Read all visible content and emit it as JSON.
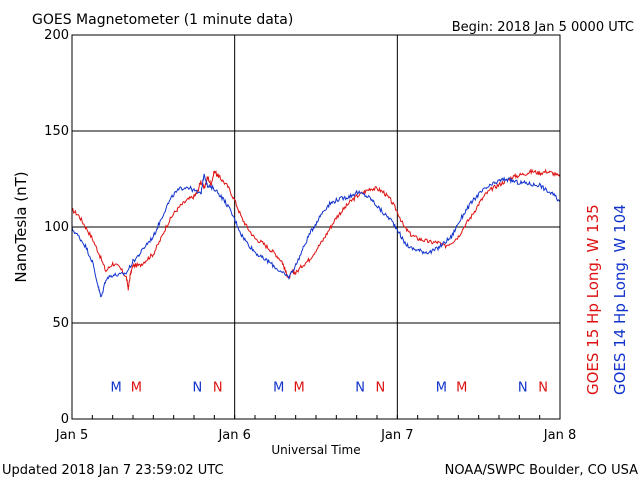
{
  "chart_data": {
    "type": "line",
    "title": "GOES Magnetometer (1 minute data)",
    "begin_label": "Begin:  2018 Jan 5 0000 UTC",
    "xlabel": "Universal Time",
    "ylabel": "NanoTesla (nT)",
    "updated_label": "Updated 2018 Jan  7 23:59:02 UTC",
    "source_label": "NOAA/SWPC Boulder, CO USA",
    "x_unit": "hours since 2018 Jan 5 0000 UTC",
    "xlim": [
      0,
      72
    ],
    "ylim": [
      0,
      200
    ],
    "y_ticks": [
      0,
      50,
      100,
      150,
      200
    ],
    "x_ticks": [
      {
        "value": 0,
        "label": "Jan 5"
      },
      {
        "value": 24,
        "label": "Jan 6"
      },
      {
        "value": 48,
        "label": "Jan 7"
      },
      {
        "value": 72,
        "label": "Jan 8"
      }
    ],
    "grid": true,
    "series": [
      {
        "name": "GOES 15 Hp  Long. W 135",
        "color": "#dd1111",
        "points": [
          [
            0,
            109
          ],
          [
            1,
            106
          ],
          [
            2,
            100
          ],
          [
            3,
            94
          ],
          [
            4,
            86
          ],
          [
            5,
            77
          ],
          [
            6,
            81
          ],
          [
            7,
            79
          ],
          [
            8,
            74
          ],
          [
            8.3,
            68
          ],
          [
            8.6,
            75
          ],
          [
            9,
            80
          ],
          [
            10,
            80
          ],
          [
            11,
            83
          ],
          [
            12,
            86
          ],
          [
            13,
            93
          ],
          [
            14,
            101
          ],
          [
            15,
            107
          ],
          [
            16,
            111
          ],
          [
            17,
            114
          ],
          [
            18,
            116
          ],
          [
            18.5,
            118
          ],
          [
            19,
            124
          ],
          [
            19.5,
            120
          ],
          [
            20,
            126
          ],
          [
            20.5,
            122
          ],
          [
            21,
            129
          ],
          [
            21.5,
            127
          ],
          [
            22,
            125
          ],
          [
            23,
            121
          ],
          [
            24,
            114
          ],
          [
            25,
            105
          ],
          [
            26,
            99
          ],
          [
            27,
            94
          ],
          [
            28,
            92
          ],
          [
            29,
            89
          ],
          [
            30,
            86
          ],
          [
            31,
            82
          ],
          [
            31.5,
            77
          ],
          [
            32,
            73
          ],
          [
            32.5,
            77
          ],
          [
            33,
            76
          ],
          [
            34,
            80
          ],
          [
            35,
            83
          ],
          [
            36,
            88
          ],
          [
            37,
            93
          ],
          [
            38,
            99
          ],
          [
            39,
            105
          ],
          [
            40,
            109
          ],
          [
            41,
            113
          ],
          [
            42,
            116
          ],
          [
            43,
            118
          ],
          [
            44,
            120
          ],
          [
            45,
            120
          ],
          [
            46,
            118
          ],
          [
            47,
            114
          ],
          [
            48,
            108
          ],
          [
            49,
            100
          ],
          [
            50,
            96
          ],
          [
            51,
            94
          ],
          [
            52,
            93
          ],
          [
            53,
            92
          ],
          [
            54,
            92
          ],
          [
            55,
            90
          ],
          [
            56,
            92
          ],
          [
            57,
            95
          ],
          [
            58,
            101
          ],
          [
            59,
            106
          ],
          [
            60,
            112
          ],
          [
            61,
            117
          ],
          [
            62,
            120
          ],
          [
            63,
            122
          ],
          [
            64,
            124
          ],
          [
            65,
            126
          ],
          [
            66,
            127
          ],
          [
            67,
            128
          ],
          [
            68,
            129
          ],
          [
            69,
            128
          ],
          [
            70,
            129
          ],
          [
            71,
            128
          ],
          [
            72,
            126
          ]
        ]
      },
      {
        "name": "GOES 14 Hp  Long. W 104",
        "color": "#1133cc",
        "points": [
          [
            0,
            99
          ],
          [
            1,
            95
          ],
          [
            2,
            90
          ],
          [
            3,
            82
          ],
          [
            3.8,
            70
          ],
          [
            4.3,
            63
          ],
          [
            5,
            73
          ],
          [
            6,
            75
          ],
          [
            7,
            75
          ],
          [
            8,
            76
          ],
          [
            9,
            82
          ],
          [
            10,
            86
          ],
          [
            11,
            91
          ],
          [
            12,
            95
          ],
          [
            13,
            103
          ],
          [
            14,
            111
          ],
          [
            15,
            117
          ],
          [
            16,
            120
          ],
          [
            17,
            121
          ],
          [
            18,
            119
          ],
          [
            19,
            117
          ],
          [
            19.5,
            128
          ],
          [
            20,
            121
          ],
          [
            21,
            120
          ],
          [
            22,
            116
          ],
          [
            23,
            111
          ],
          [
            24,
            104
          ],
          [
            25,
            96
          ],
          [
            26,
            91
          ],
          [
            27,
            87
          ],
          [
            28,
            84
          ],
          [
            29,
            82
          ],
          [
            30,
            79
          ],
          [
            31,
            76
          ],
          [
            32,
            74
          ],
          [
            33,
            80
          ],
          [
            34,
            88
          ],
          [
            35,
            96
          ],
          [
            36,
            102
          ],
          [
            37,
            108
          ],
          [
            38,
            112
          ],
          [
            39,
            114
          ],
          [
            40,
            115
          ],
          [
            41,
            116
          ],
          [
            42,
            118
          ],
          [
            43,
            117
          ],
          [
            44,
            115
          ],
          [
            45,
            111
          ],
          [
            46,
            107
          ],
          [
            47,
            104
          ],
          [
            48,
            99
          ],
          [
            49,
            92
          ],
          [
            50,
            89
          ],
          [
            51,
            88
          ],
          [
            52,
            87
          ],
          [
            53,
            87
          ],
          [
            54,
            89
          ],
          [
            55,
            92
          ],
          [
            56,
            95
          ],
          [
            57,
            102
          ],
          [
            58,
            108
          ],
          [
            59,
            113
          ],
          [
            60,
            117
          ],
          [
            61,
            120
          ],
          [
            62,
            122
          ],
          [
            63,
            124
          ],
          [
            64,
            125
          ],
          [
            65,
            124
          ],
          [
            66,
            123
          ],
          [
            67,
            123
          ],
          [
            68,
            122
          ],
          [
            69,
            122
          ],
          [
            70,
            119
          ],
          [
            71,
            117
          ],
          [
            72,
            113
          ]
        ]
      }
    ],
    "markers": [
      {
        "label": "M",
        "x": 6.5,
        "y": 17,
        "color": "#1133cc"
      },
      {
        "label": "M",
        "x": 9.5,
        "y": 17,
        "color": "#dd1111"
      },
      {
        "label": "N",
        "x": 18.5,
        "y": 17,
        "color": "#1133cc"
      },
      {
        "label": "N",
        "x": 21.5,
        "y": 17,
        "color": "#dd1111"
      },
      {
        "label": "M",
        "x": 30.5,
        "y": 17,
        "color": "#1133cc"
      },
      {
        "label": "M",
        "x": 33.5,
        "y": 17,
        "color": "#dd1111"
      },
      {
        "label": "N",
        "x": 42.5,
        "y": 17,
        "color": "#1133cc"
      },
      {
        "label": "N",
        "x": 45.5,
        "y": 17,
        "color": "#dd1111"
      },
      {
        "label": "M",
        "x": 54.5,
        "y": 17,
        "color": "#1133cc"
      },
      {
        "label": "M",
        "x": 57.5,
        "y": 17,
        "color": "#dd1111"
      },
      {
        "label": "N",
        "x": 66.5,
        "y": 17,
        "color": "#1133cc"
      },
      {
        "label": "N",
        "x": 69.5,
        "y": 17,
        "color": "#dd1111"
      }
    ]
  }
}
